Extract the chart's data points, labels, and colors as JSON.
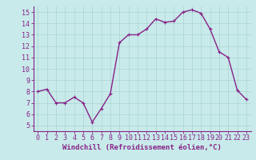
{
  "x": [
    0,
    1,
    2,
    3,
    4,
    5,
    6,
    7,
    8,
    9,
    10,
    11,
    12,
    13,
    14,
    15,
    16,
    17,
    18,
    19,
    20,
    21,
    22,
    23
  ],
  "y": [
    8.0,
    8.2,
    7.0,
    7.0,
    7.5,
    7.0,
    5.3,
    6.5,
    7.8,
    12.3,
    13.0,
    13.0,
    13.5,
    14.4,
    14.1,
    14.2,
    15.0,
    15.2,
    14.9,
    13.5,
    11.5,
    11.0,
    8.1,
    7.3
  ],
  "line_color": "#882288",
  "marker_color": "#882288",
  "bg_color": "#c8eaea",
  "grid_color": "#aad4d4",
  "xlabel": "Windchill (Refroidissement éolien,°C)",
  "xlabel_color": "#882288",
  "tick_color": "#882288",
  "axis_color": "#882288",
  "xlim": [
    -0.5,
    23.5
  ],
  "ylim": [
    4.5,
    15.5
  ],
  "yticks": [
    5,
    6,
    7,
    8,
    9,
    10,
    11,
    12,
    13,
    14,
    15
  ],
  "xticks": [
    0,
    1,
    2,
    3,
    4,
    5,
    6,
    7,
    8,
    9,
    10,
    11,
    12,
    13,
    14,
    15,
    16,
    17,
    18,
    19,
    20,
    21,
    22,
    23
  ],
  "xlabel_fontsize": 6.5,
  "tick_fontsize": 6.0,
  "line_width": 1.0,
  "marker_size": 2.5
}
